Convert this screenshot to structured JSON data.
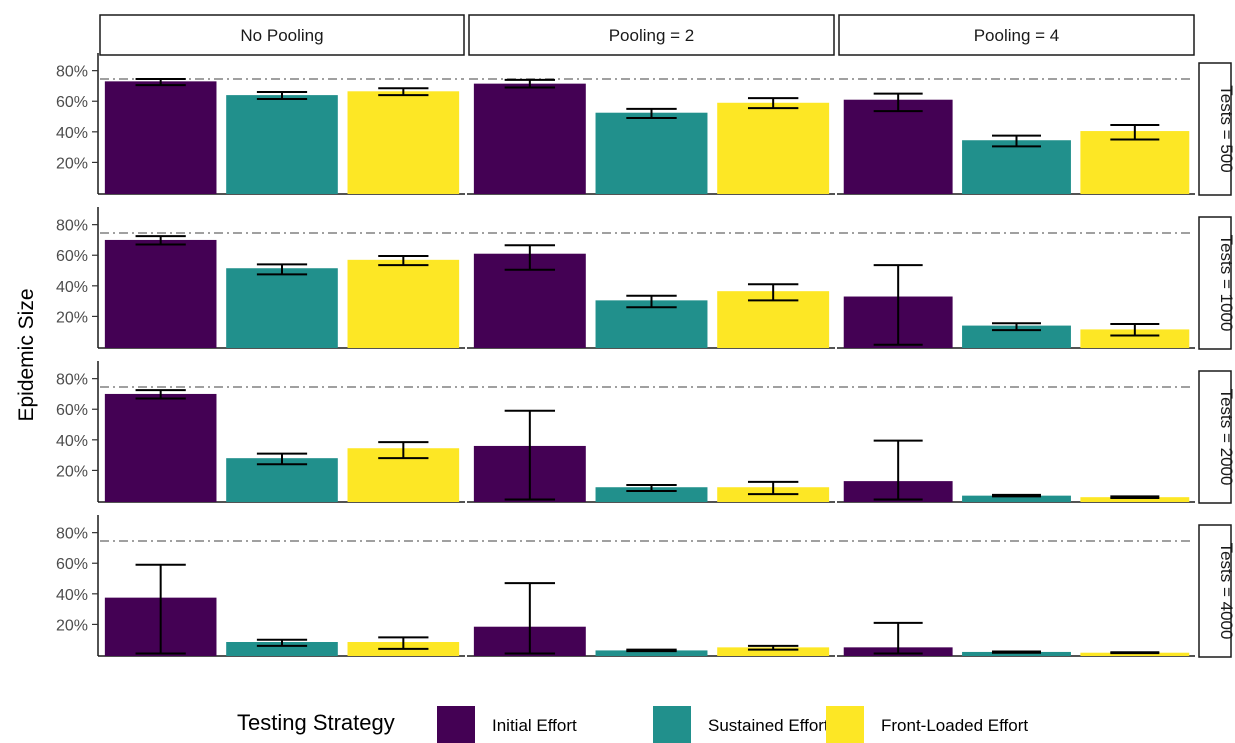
{
  "chart_data": {
    "type": "bar",
    "ylabel": "Epidemic Size",
    "xlabel": "",
    "column_facets": [
      "No Pooling",
      "Pooling = 2",
      "Pooling = 4"
    ],
    "row_facets": [
      "Tests = 500",
      "Tests = 1000",
      "Tests = 2000",
      "Tests = 4000"
    ],
    "categories": [
      "Initial Effort",
      "Sustained Effort",
      "Front-Loaded Effort"
    ],
    "colors": {
      "Initial Effort": "#440154",
      "Sustained Effort": "#21908C",
      "Front-Loaded Effort": "#FDE725"
    },
    "yticks": [
      0.2,
      0.4,
      0.6,
      0.8
    ],
    "ytick_labels": [
      "20%",
      "40%",
      "60%",
      "80%"
    ],
    "ylim": [
      0,
      0.85
    ],
    "reference_line": 0.745,
    "legend": {
      "title": "Testing Strategy",
      "position": "bottom",
      "labels": [
        "Initial Effort",
        "Sustained Effort",
        "Front-Loaded Effort"
      ]
    },
    "panels": [
      {
        "row": 0,
        "col": 0,
        "values": [
          0.73,
          0.64,
          0.665
        ],
        "err_low": [
          0.705,
          0.615,
          0.64
        ],
        "err_high": [
          0.745,
          0.66,
          0.685
        ]
      },
      {
        "row": 0,
        "col": 1,
        "values": [
          0.715,
          0.525,
          0.59
        ],
        "err_low": [
          0.69,
          0.49,
          0.555
        ],
        "err_high": [
          0.74,
          0.55,
          0.62
        ]
      },
      {
        "row": 0,
        "col": 2,
        "values": [
          0.61,
          0.345,
          0.405
        ],
        "err_low": [
          0.535,
          0.305,
          0.35
        ],
        "err_high": [
          0.65,
          0.375,
          0.445
        ]
      },
      {
        "row": 1,
        "col": 0,
        "values": [
          0.7,
          0.515,
          0.57
        ],
        "err_low": [
          0.67,
          0.475,
          0.535
        ],
        "err_high": [
          0.725,
          0.54,
          0.595
        ]
      },
      {
        "row": 1,
        "col": 1,
        "values": [
          0.61,
          0.305,
          0.365
        ],
        "err_low": [
          0.505,
          0.26,
          0.305
        ],
        "err_high": [
          0.665,
          0.335,
          0.41
        ]
      },
      {
        "row": 1,
        "col": 2,
        "values": [
          0.33,
          0.14,
          0.115
        ],
        "err_low": [
          0.015,
          0.11,
          0.075
        ],
        "err_high": [
          0.535,
          0.155,
          0.15
        ]
      },
      {
        "row": 2,
        "col": 0,
        "values": [
          0.7,
          0.28,
          0.345
        ],
        "err_low": [
          0.67,
          0.24,
          0.28
        ],
        "err_high": [
          0.725,
          0.31,
          0.385
        ]
      },
      {
        "row": 2,
        "col": 1,
        "values": [
          0.36,
          0.09,
          0.09
        ],
        "err_low": [
          0.01,
          0.065,
          0.045
        ],
        "err_high": [
          0.59,
          0.105,
          0.125
        ]
      },
      {
        "row": 2,
        "col": 2,
        "values": [
          0.13,
          0.035,
          0.025
        ],
        "err_low": [
          0.01,
          0.03,
          0.02
        ],
        "err_high": [
          0.395,
          0.04,
          0.03
        ]
      },
      {
        "row": 3,
        "col": 0,
        "values": [
          0.375,
          0.085,
          0.085
        ],
        "err_low": [
          0.01,
          0.06,
          0.04
        ],
        "err_high": [
          0.59,
          0.1,
          0.115
        ]
      },
      {
        "row": 3,
        "col": 1,
        "values": [
          0.185,
          0.03,
          0.05
        ],
        "err_low": [
          0.01,
          0.025,
          0.035
        ],
        "err_high": [
          0.47,
          0.035,
          0.06
        ]
      },
      {
        "row": 3,
        "col": 2,
        "values": [
          0.05,
          0.02,
          0.015
        ],
        "err_low": [
          0.01,
          0.015,
          0.012
        ],
        "err_high": [
          0.21,
          0.023,
          0.018
        ]
      }
    ]
  }
}
